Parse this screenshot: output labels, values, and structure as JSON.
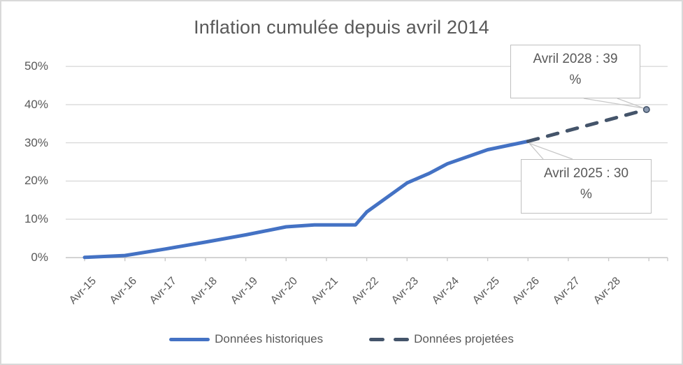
{
  "chart": {
    "colors": {
      "historical": "#4472C4",
      "projected": "#44546A",
      "gridline": "#D9D9D9",
      "axis": "#C9C9C9",
      "text": "#595959",
      "callout_border": "#BFBFBF",
      "leader": "#C8C8C8",
      "marker_fill": "#8B9AB1"
    }
  },
  "chart_data": {
    "type": "line",
    "title": "Inflation cumulée depuis avril 2014",
    "xlabel": "",
    "ylabel": "",
    "ylim": [
      0,
      50
    ],
    "grid": "horizontal",
    "legend_position": "bottom-center",
    "x_tick_labels": [
      "Avr-15",
      "Avr-16",
      "Avr-17",
      "Avr-18",
      "Avr-19",
      "Avr-20",
      "Avr-21",
      "Avr-22",
      "Avr-23",
      "Avr-24",
      "Avr-25",
      "Avr-26",
      "Avr-27",
      "Avr-28"
    ],
    "y_tick_labels": [
      "0%",
      "10%",
      "20%",
      "30%",
      "40%",
      "50%"
    ],
    "series": [
      {
        "name": "Données historiques",
        "style": "solid",
        "color": "#4472C4",
        "points": [
          [
            0,
            0
          ],
          [
            1,
            0.5
          ],
          [
            2,
            2.2
          ],
          [
            3,
            4.0
          ],
          [
            4,
            5.9
          ],
          [
            5,
            8.0
          ],
          [
            5.7,
            8.5
          ],
          [
            6.72,
            8.5
          ],
          [
            7,
            11.9
          ],
          [
            8,
            19.5
          ],
          [
            8.55,
            22.0
          ],
          [
            9,
            24.5
          ],
          [
            10,
            28.2
          ],
          [
            11,
            30.4
          ]
        ]
      },
      {
        "name": "Données projetées",
        "style": "dashed",
        "color": "#44546A",
        "end_marker": true,
        "points": [
          [
            11,
            30.4
          ],
          [
            13.94,
            38.7
          ]
        ]
      }
    ],
    "annotations": [
      {
        "text": "Avril 2028 : 39 %",
        "display": "Avril 2028 : 39\n%",
        "value": 39,
        "x": "Avril 2028"
      },
      {
        "text": "Avril 2025 : 30 %",
        "display": "Avril 2025 : 30\n%",
        "value": 30,
        "x": "Avril 2025"
      }
    ]
  }
}
